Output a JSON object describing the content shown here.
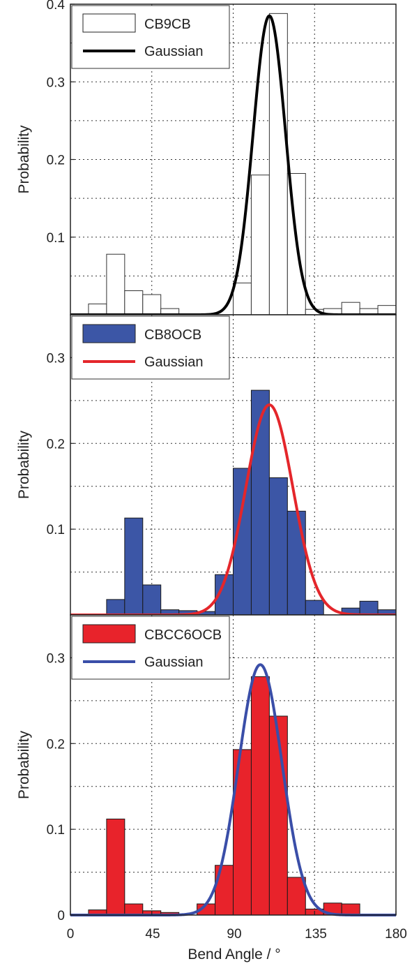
{
  "xlabel": "Bend Angle / °",
  "xlim": [
    0,
    180
  ],
  "xticks": [
    "0",
    "45",
    "90",
    "135",
    "180"
  ],
  "chart_data": [
    {
      "type": "bar",
      "ylabel": "Probability",
      "ylim": [
        0,
        0.4
      ],
      "yticks": [
        {
          "value": 0.1,
          "label": "0.1"
        },
        {
          "value": 0.2,
          "label": "0.2"
        },
        {
          "value": 0.3,
          "label": "0.3"
        },
        {
          "value": 0.4,
          "label": "0.4"
        }
      ],
      "grid": true,
      "bin_edges": [
        0,
        10,
        20,
        30,
        40,
        50,
        60,
        70,
        80,
        90,
        100,
        110,
        120,
        130,
        140,
        150,
        160,
        170,
        180
      ],
      "series": [
        {
          "name": "CB9CB",
          "values": [
            0,
            0.014,
            0.078,
            0.031,
            0.026,
            0.008,
            0,
            0,
            0,
            0.041,
            0.18,
            0.388,
            0.182,
            0.007,
            0.008,
            0.016,
            0.008,
            0.012
          ]
        },
        {
          "name": "Gaussian",
          "kind": "gaussian",
          "amplitude": 0.385,
          "mean": 110,
          "sigma": 9
        }
      ],
      "colors": {
        "bar_fill": "#ffffff",
        "bar_stroke": "#333333",
        "curve": "#000000"
      },
      "legend_position": "top-left"
    },
    {
      "type": "bar",
      "ylabel": "Probability",
      "ylim": [
        0,
        0.35
      ],
      "yticks": [
        {
          "value": 0.1,
          "label": "0.1"
        },
        {
          "value": 0.2,
          "label": "0.2"
        },
        {
          "value": 0.3,
          "label": "0.3"
        }
      ],
      "grid": true,
      "bin_edges": [
        0,
        10,
        20,
        30,
        40,
        50,
        60,
        70,
        80,
        90,
        100,
        110,
        120,
        130,
        140,
        150,
        160,
        170,
        180
      ],
      "series": [
        {
          "name": "CB8OCB",
          "values": [
            0,
            0,
            0.018,
            0.113,
            0.035,
            0.006,
            0.005,
            0.004,
            0.047,
            0.171,
            0.262,
            0.16,
            0.121,
            0.017,
            0,
            0.008,
            0.016,
            0.006
          ]
        },
        {
          "name": "Gaussian",
          "kind": "gaussian",
          "amplitude": 0.245,
          "mean": 110,
          "sigma": 13
        }
      ],
      "colors": {
        "bar_fill": "#3c56a6",
        "bar_stroke": "#1a1a1a",
        "curve": "#e4262b"
      },
      "legend_position": "top-left"
    },
    {
      "type": "bar",
      "ylabel": "Probability",
      "ylim": [
        0,
        0.35
      ],
      "yticks": [
        {
          "value": 0,
          "label": "0"
        },
        {
          "value": 0.1,
          "label": "0.1"
        },
        {
          "value": 0.2,
          "label": "0.2"
        },
        {
          "value": 0.3,
          "label": "0.3"
        }
      ],
      "grid": true,
      "bin_edges": [
        0,
        10,
        20,
        30,
        40,
        50,
        60,
        70,
        80,
        90,
        100,
        110,
        120,
        130,
        140,
        150,
        160,
        170,
        180
      ],
      "series": [
        {
          "name": "CBCC6OCB",
          "values": [
            0,
            0.006,
            0.112,
            0.013,
            0.005,
            0.003,
            0,
            0.013,
            0.058,
            0.193,
            0.278,
            0.232,
            0.044,
            0.007,
            0.014,
            0.013,
            0,
            0
          ]
        },
        {
          "name": "Gaussian",
          "kind": "gaussian",
          "amplitude": 0.292,
          "mean": 105,
          "sigma": 12
        }
      ],
      "colors": {
        "bar_fill": "#e8232b",
        "bar_stroke": "#1a1a1a",
        "curve": "#3a4ea8"
      },
      "legend_position": "top-left"
    }
  ]
}
